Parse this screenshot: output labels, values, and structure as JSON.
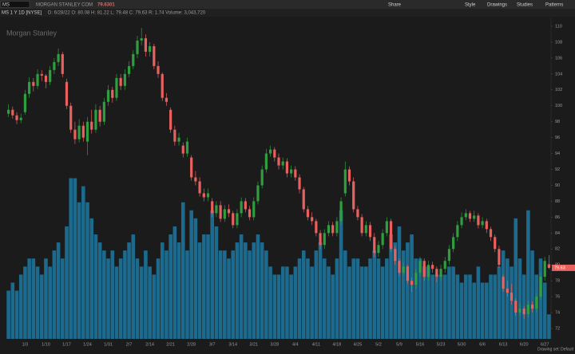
{
  "ui": {
    "symbol": "MS",
    "company": "MORGAN STANLEY COM",
    "last": "79.6301",
    "toolbar": [
      "Share",
      "Style",
      "Drawings",
      "Studies",
      "Patterns"
    ],
    "chart_label": "MS 1 Y 1D [NYSE]",
    "info": "D: 6/28/22  O: 80.08  H: 81.22  L: 79.48  C: 79.63  R: 1.74  Volume: 3,043,720",
    "drawing_set": "Drawing set: Default"
  },
  "chart_data": {
    "type": "candlestick",
    "title": "Morgan Stanley",
    "categories": [
      null,
      null,
      null,
      null,
      "1/3",
      null,
      null,
      null,
      null,
      "1/10",
      null,
      null,
      null,
      null,
      "1/17",
      null,
      null,
      null,
      null,
      "1/24",
      null,
      null,
      null,
      null,
      "1/31",
      null,
      null,
      null,
      null,
      "2/7",
      null,
      null,
      null,
      null,
      "2/14",
      null,
      null,
      null,
      null,
      "2/21",
      null,
      null,
      null,
      null,
      "2/28",
      null,
      null,
      null,
      null,
      "3/7",
      null,
      null,
      null,
      null,
      "3/14",
      null,
      null,
      null,
      null,
      "3/21",
      null,
      null,
      null,
      null,
      "3/28",
      null,
      null,
      null,
      null,
      "4/4",
      null,
      null,
      null,
      null,
      "4/11",
      null,
      null,
      null,
      null,
      "4/18",
      null,
      null,
      null,
      null,
      "4/25",
      null,
      null,
      null,
      null,
      "5/2",
      null,
      null,
      null,
      null,
      "5/9",
      null,
      null,
      null,
      null,
      "5/16",
      null,
      null,
      null,
      null,
      "5/23",
      null,
      null,
      null,
      null,
      "5/30",
      null,
      null,
      null,
      null,
      "6/6",
      null,
      null,
      null,
      null,
      "6/13",
      null,
      null,
      null,
      null,
      "6/20",
      null,
      null,
      null,
      null,
      "6/27",
      null
    ],
    "ohlc": [
      [
        99.0,
        100.2,
        98.6,
        99.5
      ],
      [
        99.5,
        99.9,
        98.4,
        98.8
      ],
      [
        98.8,
        99.2,
        97.7,
        98.2
      ],
      [
        98.2,
        99.0,
        97.8,
        98.5
      ],
      [
        99.2,
        102.0,
        98.9,
        101.5
      ],
      [
        101.5,
        103.6,
        101.0,
        103.0
      ],
      [
        103.0,
        103.5,
        101.8,
        102.5
      ],
      [
        102.5,
        104.6,
        102.1,
        104.0
      ],
      [
        104.0,
        104.5,
        103.1,
        103.8
      ],
      [
        103.8,
        104.0,
        102.2,
        103.0
      ],
      [
        103.0,
        105.0,
        102.6,
        104.5
      ],
      [
        104.5,
        106.0,
        104.0,
        105.5
      ],
      [
        105.5,
        107.2,
        105.0,
        106.5
      ],
      [
        106.5,
        106.8,
        103.6,
        104.0
      ],
      [
        103.0,
        103.4,
        99.6,
        100.0
      ],
      [
        100.0,
        100.4,
        96.6,
        97.0
      ],
      [
        97.0,
        98.0,
        95.2,
        95.8
      ],
      [
        95.8,
        98.3,
        95.4,
        97.5
      ],
      [
        97.5,
        98.0,
        95.5,
        96.0
      ],
      [
        95.5,
        98.6,
        93.8,
        98.0
      ],
      [
        98.0,
        99.5,
        96.5,
        97.0
      ],
      [
        97.0,
        100.2,
        96.6,
        99.5
      ],
      [
        99.5,
        100.0,
        97.4,
        98.0
      ],
      [
        98.0,
        101.0,
        97.6,
        100.5
      ],
      [
        100.5,
        102.6,
        100.0,
        102.0
      ],
      [
        102.0,
        102.4,
        100.4,
        101.0
      ],
      [
        101.0,
        104.0,
        100.6,
        103.5
      ],
      [
        103.5,
        104.0,
        102.0,
        102.5
      ],
      [
        102.5,
        104.6,
        102.0,
        104.0
      ],
      [
        104.0,
        105.6,
        103.6,
        105.0
      ],
      [
        105.0,
        107.0,
        104.6,
        106.5
      ],
      [
        106.5,
        108.8,
        106.0,
        108.2
      ],
      [
        108.2,
        109.8,
        107.6,
        108.5
      ],
      [
        108.5,
        109.0,
        106.2,
        106.8
      ],
      [
        106.8,
        108.0,
        106.2,
        107.5
      ],
      [
        107.5,
        107.8,
        104.6,
        105.0
      ],
      [
        105.0,
        105.6,
        103.5,
        104.0
      ],
      [
        104.0,
        104.2,
        100.6,
        101.0
      ],
      [
        101.0,
        101.6,
        100.0,
        100.5
      ],
      [
        99.5,
        99.8,
        96.6,
        97.0
      ],
      [
        97.0,
        97.5,
        95.0,
        95.5
      ],
      [
        95.5,
        96.6,
        95.0,
        96.0
      ],
      [
        95.0,
        95.4,
        93.5,
        94.0
      ],
      [
        94.0,
        96.0,
        93.6,
        95.5
      ],
      [
        93.5,
        93.8,
        90.6,
        91.0
      ],
      [
        91.0,
        91.8,
        90.0,
        90.5
      ],
      [
        90.5,
        91.0,
        88.6,
        89.0
      ],
      [
        89.0,
        89.6,
        88.0,
        88.5
      ],
      [
        88.5,
        89.6,
        88.0,
        89.0
      ],
      [
        88.0,
        88.4,
        86.0,
        86.5
      ],
      [
        86.5,
        88.0,
        86.0,
        87.5
      ],
      [
        87.5,
        88.0,
        85.4,
        85.8
      ],
      [
        85.8,
        87.5,
        85.4,
        87.0
      ],
      [
        87.0,
        87.6,
        86.0,
        86.5
      ],
      [
        86.5,
        86.8,
        84.6,
        85.0
      ],
      [
        85.0,
        87.0,
        84.6,
        86.5
      ],
      [
        86.5,
        88.5,
        86.0,
        88.0
      ],
      [
        88.0,
        88.4,
        86.6,
        87.0
      ],
      [
        87.0,
        87.4,
        85.6,
        86.0
      ],
      [
        86.0,
        88.5,
        85.6,
        88.0
      ],
      [
        88.0,
        90.5,
        87.6,
        90.0
      ],
      [
        90.0,
        92.5,
        89.6,
        92.0
      ],
      [
        92.0,
        94.6,
        91.6,
        94.0
      ],
      [
        94.0,
        95.0,
        93.6,
        94.5
      ],
      [
        94.5,
        94.8,
        93.0,
        93.5
      ],
      [
        93.5,
        94.0,
        92.0,
        92.5
      ],
      [
        92.5,
        93.5,
        92.0,
        93.0
      ],
      [
        93.0,
        93.4,
        91.0,
        91.5
      ],
      [
        91.5,
        92.5,
        91.0,
        92.0
      ],
      [
        92.0,
        92.4,
        90.6,
        91.0
      ],
      [
        91.0,
        91.4,
        89.0,
        89.5
      ],
      [
        89.5,
        89.8,
        86.6,
        87.0
      ],
      [
        87.0,
        87.4,
        85.6,
        86.0
      ],
      [
        86.0,
        86.6,
        85.0,
        85.5
      ],
      [
        85.5,
        85.8,
        83.6,
        84.0
      ],
      [
        84.0,
        84.4,
        82.0,
        82.5
      ],
      [
        82.5,
        84.5,
        82.0,
        84.0
      ],
      [
        84.0,
        85.5,
        83.6,
        85.0
      ],
      [
        85.0,
        85.4,
        83.6,
        84.0
      ],
      [
        84.0,
        86.0,
        83.6,
        85.5
      ],
      [
        85.5,
        88.5,
        85.0,
        88.0
      ],
      [
        89.0,
        93.0,
        88.6,
        92.0
      ],
      [
        92.0,
        92.4,
        90.0,
        90.5
      ],
      [
        90.5,
        91.0,
        86.6,
        87.0
      ],
      [
        87.0,
        87.4,
        85.6,
        86.0
      ],
      [
        86.0,
        86.4,
        83.6,
        84.0
      ],
      [
        84.0,
        85.5,
        83.6,
        85.0
      ],
      [
        85.0,
        85.4,
        83.0,
        83.5
      ],
      [
        83.5,
        84.0,
        81.0,
        81.5
      ],
      [
        81.5,
        83.0,
        81.0,
        82.5
      ],
      [
        82.5,
        84.5,
        82.0,
        84.0
      ],
      [
        84.0,
        86.0,
        83.6,
        85.5
      ],
      [
        85.5,
        85.8,
        81.6,
        82.0
      ],
      [
        82.0,
        82.4,
        80.0,
        80.5
      ],
      [
        80.5,
        80.8,
        78.6,
        79.0
      ],
      [
        79.0,
        80.4,
        78.6,
        79.8
      ],
      [
        79.8,
        80.0,
        77.6,
        78.0
      ],
      [
        78.0,
        78.4,
        76.6,
        77.5
      ],
      [
        77.5,
        79.5,
        77.0,
        79.0
      ],
      [
        79.0,
        81.0,
        78.6,
        80.5
      ],
      [
        80.5,
        80.8,
        78.0,
        78.5
      ],
      [
        78.5,
        80.5,
        78.0,
        80.0
      ],
      [
        80.0,
        80.4,
        79.0,
        79.5
      ],
      [
        79.5,
        79.8,
        77.8,
        78.5
      ],
      [
        78.5,
        80.0,
        78.0,
        79.5
      ],
      [
        79.5,
        81.0,
        79.0,
        80.5
      ],
      [
        80.5,
        82.5,
        80.0,
        82.0
      ],
      [
        82.0,
        84.0,
        81.6,
        83.5
      ],
      [
        83.5,
        85.5,
        83.0,
        85.0
      ],
      [
        85.0,
        86.6,
        84.6,
        86.0
      ],
      [
        86.0,
        87.0,
        85.6,
        86.5
      ],
      [
        86.5,
        86.8,
        85.4,
        85.8
      ],
      [
        85.8,
        86.8,
        85.4,
        86.2
      ],
      [
        86.2,
        86.5,
        84.6,
        85.0
      ],
      [
        85.0,
        86.0,
        84.6,
        85.5
      ],
      [
        85.5,
        85.8,
        84.0,
        84.5
      ],
      [
        84.5,
        84.8,
        83.0,
        83.5
      ],
      [
        83.5,
        83.8,
        81.6,
        82.0
      ],
      [
        82.0,
        82.4,
        79.6,
        80.0
      ],
      [
        78.5,
        78.8,
        76.6,
        77.0
      ],
      [
        77.0,
        78.0,
        76.0,
        76.5
      ],
      [
        76.5,
        77.6,
        75.0,
        75.5
      ],
      [
        75.5,
        75.8,
        73.6,
        74.0
      ],
      [
        74.0,
        75.2,
        73.5,
        74.5
      ],
      [
        74.5,
        74.8,
        73.2,
        73.8
      ],
      [
        73.8,
        75.5,
        73.4,
        75.0
      ],
      [
        75.0,
        75.4,
        74.0,
        74.5
      ],
      [
        74.5,
        76.5,
        74.0,
        76.0
      ],
      [
        76.0,
        79.0,
        75.6,
        78.5
      ],
      [
        78.5,
        81.0,
        78.0,
        80.5
      ],
      [
        80.08,
        81.22,
        79.48,
        79.63
      ]
    ],
    "volume": [
      6000000,
      7000000,
      6000000,
      8000000,
      9000000,
      10000000,
      10000000,
      9000000,
      8000000,
      10000000,
      9000000,
      11000000,
      12000000,
      10000000,
      14000000,
      20000000,
      20000000,
      17000000,
      19000000,
      17000000,
      15000000,
      13000000,
      12000000,
      11000000,
      10000000,
      11000000,
      9000000,
      10000000,
      11000000,
      12000000,
      13000000,
      10000000,
      9000000,
      11000000,
      9000000,
      8000000,
      10000000,
      12000000,
      11000000,
      13000000,
      14000000,
      12000000,
      17000000,
      11000000,
      16000000,
      15000000,
      12000000,
      13000000,
      13000000,
      16000000,
      14000000,
      11000000,
      11000000,
      10000000,
      11000000,
      12000000,
      13000000,
      12000000,
      11000000,
      12000000,
      13000000,
      12000000,
      11000000,
      9000000,
      8000000,
      8000000,
      9000000,
      9000000,
      8000000,
      9000000,
      10000000,
      11000000,
      10000000,
      9000000,
      11000000,
      12000000,
      10000000,
      9000000,
      8000000,
      10000000,
      16000000,
      11000000,
      9000000,
      10000000,
      10000000,
      9000000,
      9000000,
      10000000,
      11000000,
      10000000,
      9000000,
      10000000,
      13000000,
      12000000,
      14000000,
      11000000,
      12000000,
      13000000,
      10000000,
      10000000,
      9000000,
      9000000,
      8000000,
      8000000,
      8000000,
      8000000,
      9000000,
      9000000,
      8000000,
      7000000,
      8000000,
      8000000,
      7000000,
      9000000,
      7000000,
      7000000,
      8000000,
      8000000,
      9000000,
      11000000,
      10000000,
      9000000,
      15000000,
      10000000,
      8000000,
      16000000,
      11000000,
      8000000,
      10000000,
      7000000,
      3043720
    ],
    "ylim": [
      70.7,
      111.1
    ],
    "yticks": [
      72,
      74,
      76,
      78,
      80,
      82,
      84,
      86,
      88,
      90,
      92,
      94,
      96,
      98,
      100,
      102,
      104,
      106,
      108,
      110
    ],
    "volume_ylim": [
      0,
      40000000
    ],
    "grid": false,
    "up_color": "#2e9e3e",
    "down_color": "#e8615f",
    "volume_color": "#1c6a8e"
  }
}
